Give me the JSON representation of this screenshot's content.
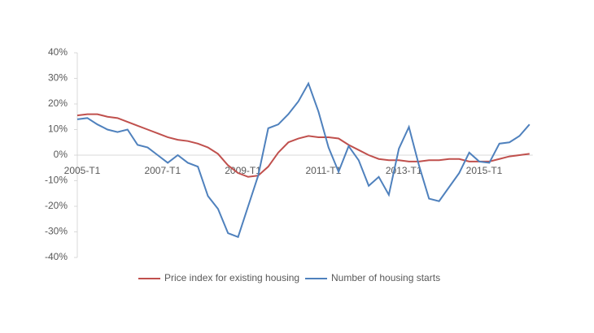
{
  "chart_data": {
    "type": "line",
    "categories": [
      "2005-T1",
      null,
      null,
      null,
      null,
      null,
      null,
      null,
      "2007-T1",
      null,
      null,
      null,
      null,
      null,
      null,
      null,
      "2009-T1",
      null,
      null,
      null,
      null,
      null,
      null,
      null,
      "2011-T1",
      null,
      null,
      null,
      null,
      null,
      null,
      null,
      "2013-T1",
      null,
      null,
      null,
      null,
      null,
      null,
      null,
      "2015-T1",
      null,
      null,
      null,
      null,
      null
    ],
    "series": [
      {
        "name": "Price index for existing housing",
        "color": "#c0504d",
        "values": [
          15.5,
          16,
          16,
          15,
          14.5,
          13,
          11.5,
          10,
          8.5,
          7,
          6,
          5.5,
          4.5,
          3,
          0.5,
          -4,
          -7,
          -8.5,
          -8,
          -4.5,
          1,
          5,
          6.5,
          7.5,
          7,
          7,
          6.5,
          4,
          2,
          0,
          -1.5,
          -2,
          -2,
          -2.5,
          -2.5,
          -2,
          -2,
          -1.5,
          -1.5,
          -2.5,
          -2.5,
          -2.5,
          -1.5,
          -0.5,
          0,
          0.5
        ]
      },
      {
        "name": "Number of housing starts",
        "color": "#4f81bd",
        "values": [
          14,
          14.5,
          12,
          10,
          9,
          10,
          4,
          3,
          0,
          -3,
          0,
          -3,
          -4.5,
          -16,
          -21,
          -30.5,
          -32,
          -20,
          -8,
          10.5,
          12,
          16,
          21,
          28,
          17,
          3,
          -6.5,
          3.5,
          -2,
          -12,
          -8.5,
          -15.5,
          2.5,
          11,
          -4,
          -17,
          -18,
          -12.5,
          -7,
          1,
          -2.5,
          -3,
          4.5,
          5,
          7.5,
          12
        ]
      }
    ],
    "ylim": [
      -40,
      40
    ],
    "yticks": [
      {
        "value": -40,
        "label": "-40%"
      },
      {
        "value": -30,
        "label": "-30%"
      },
      {
        "value": -20,
        "label": "-20%"
      },
      {
        "value": -10,
        "label": "-10%"
      },
      {
        "value": 0,
        "label": "0%"
      },
      {
        "value": 10,
        "label": "10%"
      },
      {
        "value": 20,
        "label": "20%"
      },
      {
        "value": 30,
        "label": "30%"
      },
      {
        "value": 40,
        "label": "40%"
      }
    ],
    "legend": "bottom"
  }
}
